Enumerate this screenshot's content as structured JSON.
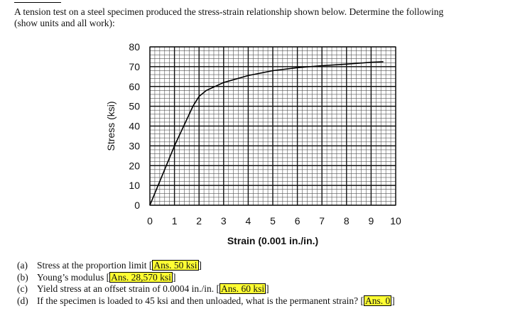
{
  "intro": {
    "line1": "A tension test on a steel specimen produced the stress-strain relationship shown below.  Determine the following",
    "line2": "(show units and all work):"
  },
  "chart_data": {
    "type": "line",
    "xlabel": "Strain (0.001 in./in.)",
    "ylabel": "Stress (ksi)",
    "xlim": [
      0,
      10
    ],
    "ylim": [
      0,
      80
    ],
    "xticks": [
      "0",
      "1",
      "2",
      "3",
      "4",
      "5",
      "6",
      "7",
      "8",
      "9",
      "10"
    ],
    "yticks": [
      "0",
      "10",
      "20",
      "30",
      "40",
      "50",
      "60",
      "70",
      "80"
    ],
    "grid": true,
    "x": [
      0,
      1.0,
      1.75,
      2.0,
      2.3,
      3.0,
      4.0,
      5.0,
      6.0,
      7.0,
      8.0,
      9.0,
      9.5
    ],
    "y": [
      0,
      30,
      50,
      55,
      58,
      62,
      65.5,
      68,
      69.5,
      70.5,
      71.3,
      72.2,
      72.5
    ]
  },
  "questions": [
    {
      "label": "(a)",
      "text": "Stress at the proportion limit ",
      "answer": "Ans. 50 ksi"
    },
    {
      "label": "(b)",
      "text": "Young’s modulus ",
      "answer": "Ans. 28,570 ksi"
    },
    {
      "label": "(c)",
      "text": "Yield stress at an offset strain of 0.0004 in./in. ",
      "answer": "Ans. 60 ksi"
    },
    {
      "label": "(d)",
      "text": "If the specimen is loaded to 45 ksi and then unloaded, what is the permanent strain? ",
      "answer": "Ans. 0"
    }
  ]
}
